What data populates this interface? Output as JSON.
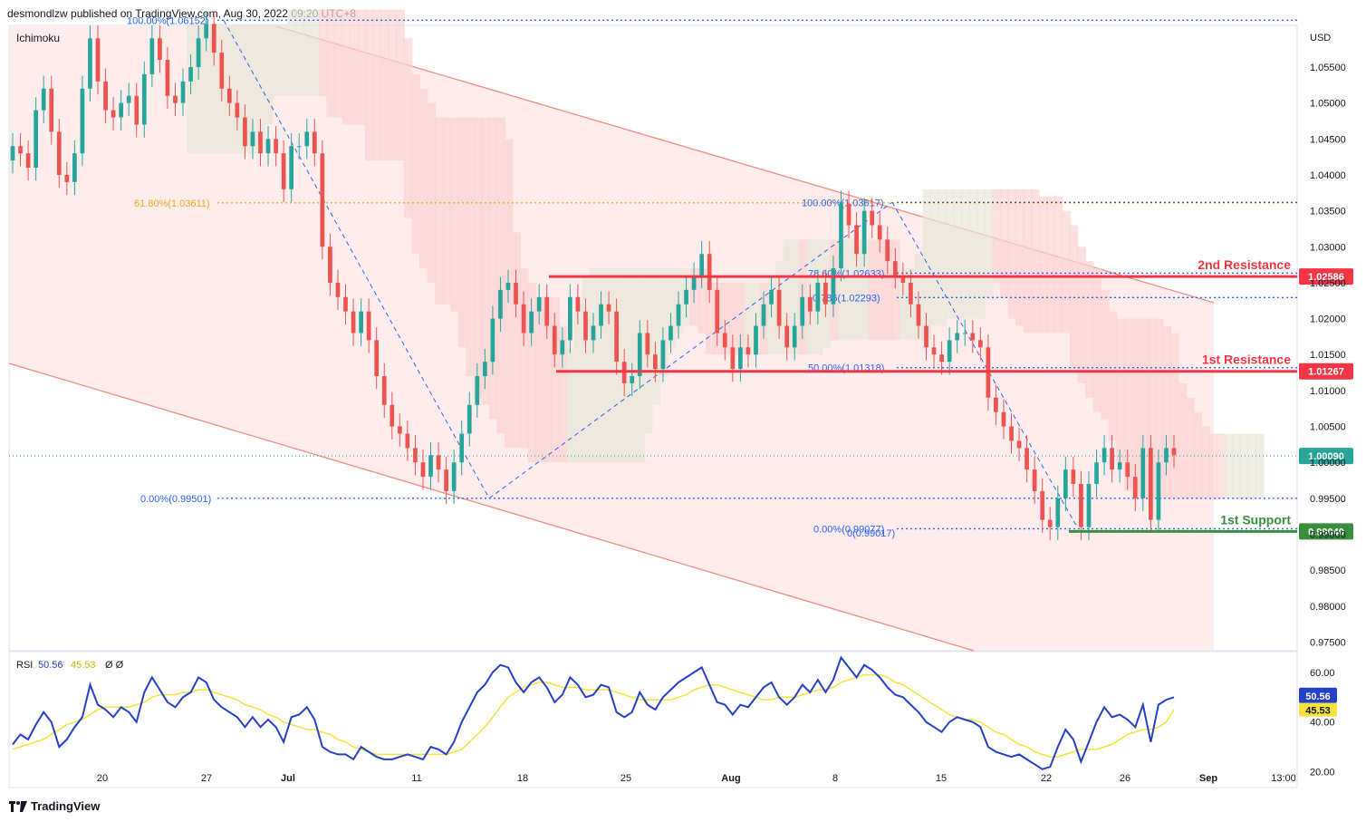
{
  "header": {
    "publisher": "desmondlzw published on TradingView.com, Aug 30, 2022 09:20 UTC+8"
  },
  "indicator_label": "Ichimoku",
  "currency_label": "USD",
  "footer": {
    "brand": "TradingView",
    "logo_icon": "tradingview-logo-icon"
  },
  "colors": {
    "bull": "#26a69a",
    "bear": "#ef5350",
    "resistance": "#f23645",
    "support": "#388e3c",
    "fib": "#2962ff",
    "fib_gold": "#f5a623",
    "channel": "#f7a9a0",
    "cloud_red": "#fcd3d3",
    "cloud_green": "#e8e6d8",
    "rsi": "#2340c6",
    "rsi_ma": "#f5e33b"
  },
  "chart_data": {
    "type": "candlestick",
    "price_axis": {
      "ticks": [
        "1.05500",
        "1.05000",
        "1.04500",
        "1.04000",
        "1.03500",
        "1.03000",
        "1.02500",
        "1.02000",
        "1.01500",
        "1.01000",
        "1.00500",
        "1.00000",
        "0.99500",
        "0.99000",
        "0.98500",
        "0.98000",
        "0.97500"
      ],
      "tick_values": [
        1.055,
        1.05,
        1.045,
        1.04,
        1.035,
        1.03,
        1.025,
        1.02,
        1.015,
        1.01,
        1.005,
        1.0,
        0.995,
        0.99,
        0.985,
        0.98,
        0.975
      ],
      "range": [
        0.9738,
        1.0608
      ]
    },
    "time_axis": {
      "labels": [
        "20",
        "27",
        "Jul",
        "11",
        "18",
        "25",
        "Aug",
        "8",
        "15",
        "22",
        "26",
        "Sep",
        "13:00"
      ],
      "bold": [
        false,
        false,
        true,
        false,
        false,
        false,
        true,
        false,
        false,
        false,
        false,
        true,
        false
      ]
    },
    "levels": [
      {
        "name": "2nd Resistance",
        "price_tag": "1.02586",
        "value": 1.02586,
        "kind": "resistance"
      },
      {
        "name": "1st Resistance",
        "price_tag": "1.01267",
        "value": 1.01267,
        "kind": "resistance"
      },
      {
        "name": "1st Support",
        "price_tag": "0.99040",
        "value": 0.9904,
        "kind": "support"
      }
    ],
    "last_price": {
      "tag": "1.00090",
      "value": 1.0009
    },
    "fib_labels": [
      {
        "text": "100.00%(1.06152)",
        "value": 1.06152
      },
      {
        "text": "61.80%(1.03611)",
        "value": 1.03611
      },
      {
        "text": "0.00%(0.99501)",
        "value": 0.99501
      },
      {
        "text": "100.00%(1.03617)",
        "value": 1.03617
      },
      {
        "text": "78.60%(1.02633)",
        "value": 1.02633
      },
      {
        "text": "0.786(1.02293)",
        "value": 1.02293
      },
      {
        "text": "50.00%(1.01318)",
        "value": 1.01318
      },
      {
        "text": "0.00%(0.99077)",
        "value": 0.99077
      },
      {
        "text": "0(0.99017)",
        "value": 0.99017
      }
    ],
    "close_series": [
      1.044,
      1.043,
      1.041,
      1.049,
      1.052,
      1.046,
      1.04,
      1.039,
      1.043,
      1.052,
      1.059,
      1.053,
      1.049,
      1.048,
      1.05,
      1.051,
      1.047,
      1.054,
      1.059,
      1.056,
      1.051,
      1.05,
      1.053,
      1.055,
      1.059,
      1.061,
      1.057,
      1.052,
      1.05,
      1.048,
      1.044,
      1.046,
      1.043,
      1.045,
      1.043,
      1.038,
      1.044,
      1.044,
      1.046,
      1.043,
      1.03,
      1.025,
      1.023,
      1.021,
      1.018,
      1.021,
      1.017,
      1.012,
      1.008,
      1.005,
      1.004,
      1.002,
      1.0,
      0.998,
      1.001,
      0.999,
      0.996,
      1.0,
      1.004,
      1.008,
      1.012,
      1.014,
      1.02,
      1.024,
      1.025,
      1.022,
      1.018,
      1.021,
      1.023,
      1.019,
      1.015,
      1.017,
      1.023,
      1.021,
      1.017,
      1.019,
      1.022,
      1.021,
      1.014,
      1.011,
      1.012,
      1.018,
      1.015,
      1.013,
      1.017,
      1.019,
      1.022,
      1.024,
      1.026,
      1.029,
      1.024,
      1.018,
      1.016,
      1.013,
      1.016,
      1.015,
      1.019,
      1.022,
      1.024,
      1.019,
      1.016,
      1.019,
      1.023,
      1.021,
      1.025,
      1.022,
      1.027,
      1.036,
      1.033,
      1.029,
      1.035,
      1.033,
      1.031,
      1.028,
      1.026,
      1.025,
      1.022,
      1.019,
      1.016,
      1.015,
      1.014,
      1.017,
      1.018,
      1.018,
      1.017,
      1.016,
      1.009,
      1.007,
      1.005,
      1.003,
      1.002,
      0.999,
      0.996,
      0.992,
      0.991,
      0.995,
      0.999,
      0.997,
      0.991,
      0.997,
      1.0,
      1.002,
      0.999,
      1.0,
      0.998,
      0.995,
      1.002,
      0.992,
      1.0,
      1.002,
      1.001
    ],
    "rsi": {
      "label": "RSI",
      "value": "50.56",
      "ma_value": "45.53",
      "extra": "Ø Ø",
      "ticks": [
        "60.00",
        "40.00",
        "20.00"
      ],
      "tick_values": [
        60,
        40,
        20
      ],
      "range": [
        14,
        68
      ],
      "series": [
        31,
        35,
        33,
        39,
        44,
        40,
        30,
        33,
        38,
        42,
        55,
        47,
        45,
        42,
        46,
        44,
        40,
        52,
        58,
        53,
        48,
        46,
        50,
        52,
        58,
        56,
        49,
        46,
        44,
        42,
        38,
        42,
        38,
        41,
        38,
        32,
        42,
        43,
        46,
        41,
        30,
        28,
        27,
        27,
        25,
        30,
        28,
        26,
        25,
        25,
        26,
        27,
        26,
        25,
        30,
        29,
        27,
        32,
        40,
        46,
        52,
        55,
        60,
        63,
        62,
        56,
        52,
        56,
        58,
        54,
        48,
        51,
        58,
        55,
        50,
        51,
        55,
        54,
        44,
        42,
        44,
        52,
        47,
        45,
        50,
        53,
        56,
        58,
        60,
        62,
        55,
        48,
        47,
        43,
        47,
        46,
        50,
        54,
        56,
        50,
        47,
        50,
        55,
        52,
        57,
        52,
        57,
        66,
        62,
        58,
        63,
        61,
        58,
        54,
        51,
        50,
        47,
        44,
        40,
        38,
        36,
        40,
        42,
        41,
        40,
        38,
        30,
        28,
        27,
        26,
        27,
        25,
        23,
        21,
        22,
        30,
        37,
        33,
        24,
        32,
        40,
        46,
        42,
        43,
        41,
        38,
        47,
        32,
        47,
        49,
        50
      ],
      "ma_series": [
        29,
        30,
        31,
        32,
        33,
        35,
        37,
        39,
        40,
        41,
        43,
        45,
        46,
        46,
        46,
        46,
        47,
        48,
        50,
        51,
        51,
        51,
        52,
        52,
        53,
        53,
        52,
        51,
        50,
        49,
        47,
        46,
        45,
        43,
        42,
        40,
        39,
        38,
        37,
        37,
        36,
        35,
        33,
        32,
        30,
        29,
        28,
        27,
        27,
        27,
        27,
        27,
        27,
        27,
        27,
        27,
        27,
        28,
        29,
        32,
        35,
        38,
        42,
        46,
        50,
        52,
        54,
        55,
        56,
        56,
        55,
        54,
        54,
        54,
        53,
        53,
        53,
        53,
        52,
        51,
        50,
        49,
        49,
        49,
        49,
        49,
        50,
        51,
        53,
        54,
        55,
        55,
        54,
        53,
        52,
        51,
        50,
        49,
        49,
        50,
        50,
        50,
        51,
        52,
        53,
        53,
        54,
        56,
        57,
        58,
        59,
        59,
        59,
        58,
        56,
        55,
        53,
        51,
        49,
        47,
        45,
        43,
        42,
        41,
        41,
        40,
        38,
        36,
        35,
        33,
        31,
        30,
        28,
        27,
        26,
        26,
        27,
        28,
        29,
        29,
        29,
        30,
        31,
        33,
        35,
        36,
        37,
        37,
        38,
        40,
        45
      ]
    }
  }
}
